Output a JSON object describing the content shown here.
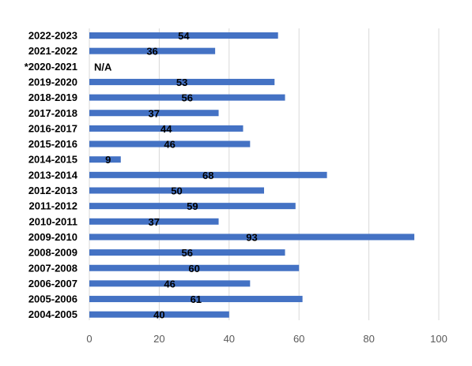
{
  "chart_data": {
    "type": "bar",
    "orientation": "horizontal",
    "categories": [
      "2022-2023",
      "2021-2022",
      "*2020-2021",
      "2019-2020",
      "2018-2019",
      "2017-2018",
      "2016-2017",
      "2015-2016",
      "2014-2015",
      "2013-2014",
      "2012-2013",
      "2011-2012",
      "2010-2011",
      "2009-2010",
      "2008-2009",
      "2007-2008",
      "2006-2007",
      "2005-2006",
      "2004-2005"
    ],
    "values": [
      54,
      36,
      null,
      53,
      56,
      37,
      44,
      46,
      9,
      68,
      50,
      59,
      37,
      93,
      56,
      60,
      46,
      61,
      40
    ],
    "data_labels": [
      "54",
      "36",
      "N/A",
      "53",
      "56",
      "37",
      "44",
      "46",
      "9",
      "68",
      "50",
      "59",
      "37",
      "93",
      "56",
      "60",
      "46",
      "61",
      "40"
    ],
    "x_ticks": [
      "0",
      "20",
      "40",
      "60",
      "80",
      "100"
    ],
    "xlim": [
      0,
      100
    ],
    "grid": true,
    "bar_color": "#4472c4",
    "title": "",
    "xlabel": "",
    "ylabel": ""
  }
}
